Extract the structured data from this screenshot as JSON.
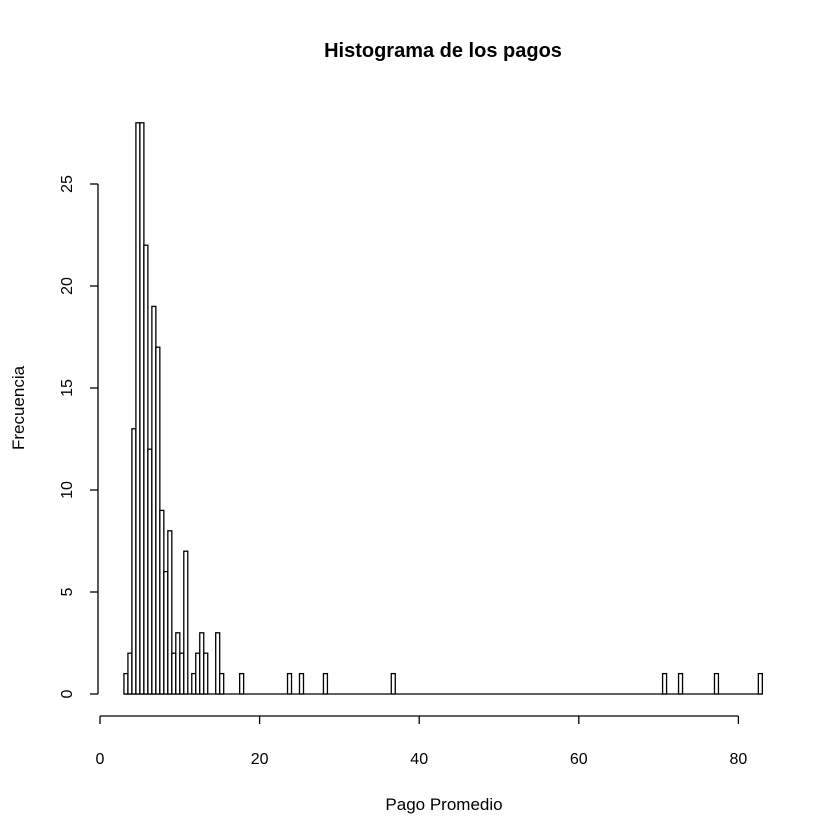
{
  "chart_data": {
    "type": "bar",
    "title": "Histograma de los pagos",
    "xlabel": "Pago Promedio",
    "ylabel": "Frecuencia",
    "xlim": [
      0,
      83
    ],
    "ylim": [
      0,
      28
    ],
    "x_ticks": [
      0,
      20,
      40,
      60,
      80
    ],
    "y_ticks": [
      0,
      5,
      10,
      15,
      20,
      25
    ],
    "bin_width": 0.5,
    "grid": false,
    "bins": [
      {
        "x0": 3.0,
        "count": 1
      },
      {
        "x0": 3.5,
        "count": 2
      },
      {
        "x0": 4.0,
        "count": 13
      },
      {
        "x0": 4.5,
        "count": 28
      },
      {
        "x0": 5.0,
        "count": 28
      },
      {
        "x0": 5.5,
        "count": 22
      },
      {
        "x0": 6.0,
        "count": 12
      },
      {
        "x0": 6.5,
        "count": 19
      },
      {
        "x0": 7.0,
        "count": 17
      },
      {
        "x0": 7.5,
        "count": 9
      },
      {
        "x0": 8.0,
        "count": 6
      },
      {
        "x0": 8.5,
        "count": 8
      },
      {
        "x0": 9.0,
        "count": 2
      },
      {
        "x0": 9.5,
        "count": 3
      },
      {
        "x0": 10.0,
        "count": 2
      },
      {
        "x0": 10.5,
        "count": 7
      },
      {
        "x0": 11.0,
        "count": 0
      },
      {
        "x0": 11.5,
        "count": 1
      },
      {
        "x0": 12.0,
        "count": 2
      },
      {
        "x0": 12.5,
        "count": 3
      },
      {
        "x0": 13.0,
        "count": 2
      },
      {
        "x0": 14.5,
        "count": 3
      },
      {
        "x0": 15.0,
        "count": 1
      },
      {
        "x0": 17.5,
        "count": 1
      },
      {
        "x0": 23.5,
        "count": 1
      },
      {
        "x0": 25.0,
        "count": 1
      },
      {
        "x0": 28.0,
        "count": 1
      },
      {
        "x0": 36.5,
        "count": 1
      },
      {
        "x0": 70.5,
        "count": 1
      },
      {
        "x0": 72.5,
        "count": 1
      },
      {
        "x0": 77.0,
        "count": 1
      },
      {
        "x0": 82.5,
        "count": 1
      }
    ]
  }
}
